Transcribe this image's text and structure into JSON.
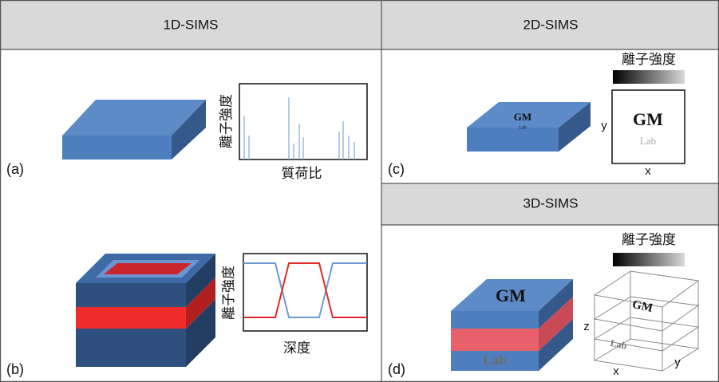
{
  "headers": [
    "1D-SIMS",
    "2D-SIMS",
    "3D-SIMS"
  ],
  "panels": [
    {
      "label": "(a)",
      "y_label": "離子強度",
      "x_label": "質荷比"
    },
    {
      "label": "(b)",
      "y_label": "離子強度",
      "x_label": "深度"
    },
    {
      "label": "(c)",
      "sample_text": [
        "GM",
        "Lab"
      ],
      "colorbar_label": "離子強度",
      "image_text": [
        "GM",
        "Lab"
      ],
      "axis_labels": [
        "x",
        "y"
      ]
    },
    {
      "label": "(d)",
      "sample_text": [
        "GM",
        "Lab"
      ],
      "colorbar_label": "離子強度",
      "volume_text": [
        "GM",
        "Lab"
      ],
      "axis_labels": [
        "x",
        "y",
        "z"
      ]
    }
  ]
}
